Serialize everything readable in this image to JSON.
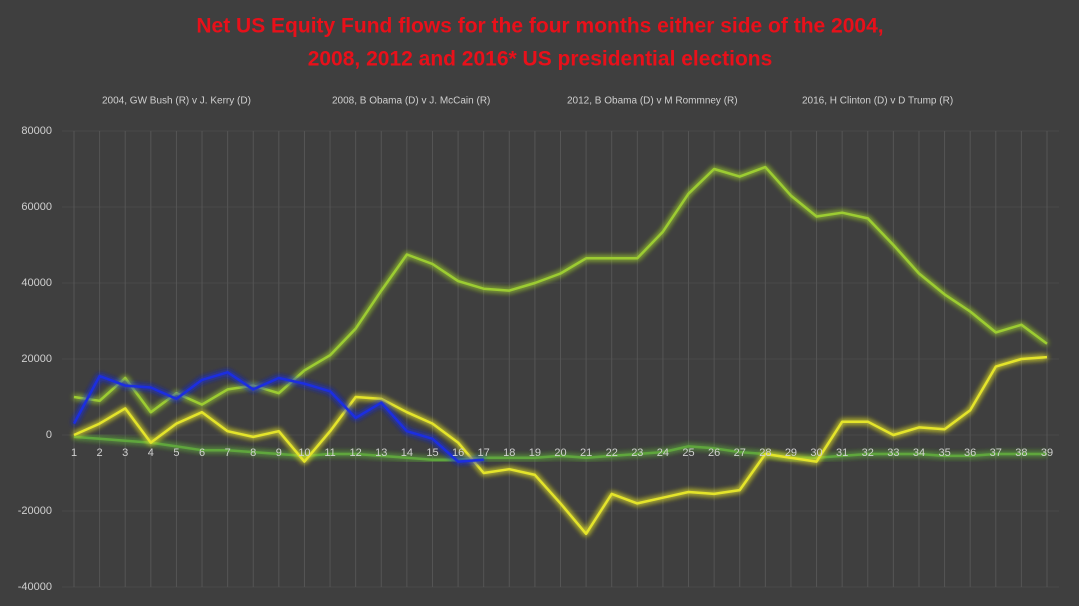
{
  "chart_data": {
    "type": "line",
    "title": [
      "Net US Equity Fund flows for the four months either side of the 2004,",
      "2008, 2012 and 2016* US presidential elections"
    ],
    "categories": [
      "1",
      "2",
      "3",
      "4",
      "5",
      "6",
      "7",
      "8",
      "9",
      "10",
      "11",
      "12",
      "13",
      "14",
      "15",
      "16",
      "17",
      "18",
      "19",
      "20",
      "21",
      "22",
      "23",
      "24",
      "25",
      "26",
      "27",
      "28",
      "29",
      "30",
      "31",
      "32",
      "33",
      "34",
      "35",
      "36",
      "37",
      "38",
      "39"
    ],
    "ylim": [
      -40000,
      80000
    ],
    "yticks": [
      -40000,
      -20000,
      0,
      20000,
      40000,
      60000,
      80000
    ],
    "grid": true,
    "legend": "top",
    "series": [
      {
        "name": "2004, GW Bush (R) v J. Kerry (D)",
        "color": "#5fa63c",
        "values": [
          -500,
          -1000,
          -1500,
          -2000,
          -3000,
          -4000,
          -4000,
          -4500,
          -5000,
          -5500,
          -5000,
          -5000,
          -5500,
          -6000,
          -6500,
          -6500,
          -6000,
          -6000,
          -6000,
          -5500,
          -6000,
          -5500,
          -5000,
          -4500,
          -3000,
          -3500,
          -4500,
          -5000,
          -6000,
          -6000,
          -5500,
          -5000,
          -5000,
          -5000,
          -5500,
          -5500,
          -5000,
          -5000,
          -5000
        ]
      },
      {
        "name": "2008, B Obama (D) v J. McCain (R)",
        "color": "#9ccc32",
        "values": [
          10000,
          9000,
          15000,
          6000,
          11000,
          8000,
          12000,
          13000,
          11000,
          17000,
          21000,
          28000,
          38000,
          47500,
          45000,
          40500,
          38500,
          38000,
          40000,
          42500,
          46500,
          46500,
          46500,
          53500,
          63500,
          70000,
          68000,
          70500,
          63000,
          57500,
          58500,
          57000,
          50000,
          42500,
          37000,
          32500,
          27000,
          29000,
          24000
        ]
      },
      {
        "name": "2012, B Obama (D) v M Rommney (R)",
        "color": "#e4e42c",
        "values": [
          0,
          3000,
          7000,
          -2000,
          3000,
          6000,
          1000,
          -500,
          1000,
          -7000,
          1000,
          10000,
          9500,
          6000,
          3000,
          -2000,
          -10000,
          -9000,
          -10500,
          -18000,
          -26000,
          -15500,
          -18000,
          -16500,
          -15000,
          -15500,
          -14500,
          -5000,
          -6000,
          -7000,
          3500,
          3500,
          0,
          2000,
          1500,
          6500,
          18000,
          20000,
          20500
        ]
      },
      {
        "name": "2016, H Clinton  (D) v D Trump (R)",
        "color": "#1a2ee0",
        "values": [
          3000,
          15500,
          13000,
          12500,
          9500,
          14500,
          16500,
          12000,
          15000,
          13500,
          11500,
          4500,
          8500,
          1000,
          -1000,
          -7000,
          -6500,
          null,
          null,
          null,
          null,
          null,
          null,
          null,
          null,
          null,
          null,
          null,
          null,
          null,
          null,
          null,
          null,
          null,
          null,
          null,
          null,
          null,
          null
        ]
      }
    ]
  }
}
